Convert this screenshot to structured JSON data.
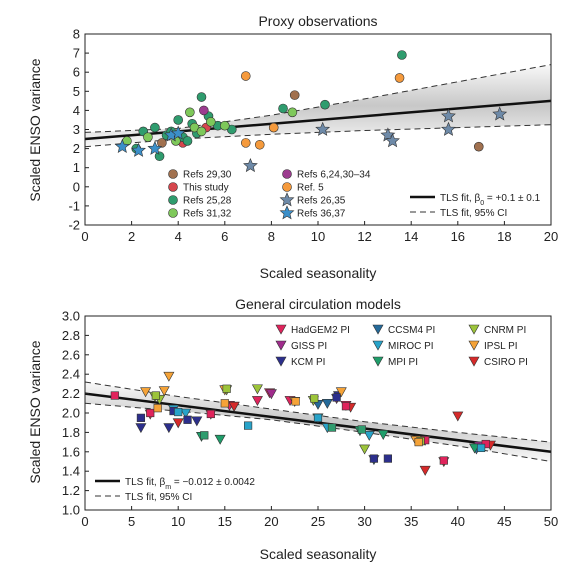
{
  "chart_data": [
    {
      "type": "scatter",
      "title": "Proxy observations",
      "xlabel": "Scaled seasonality",
      "ylabel": "Scaled ENSO variance",
      "xlim": [
        0,
        20
      ],
      "ylim": [
        -2,
        8
      ],
      "xticks": [
        "0",
        "2",
        "4",
        "6",
        "8",
        "10",
        "12",
        "14",
        "16",
        "18",
        "20"
      ],
      "yticks": [
        "-2",
        "-1",
        "0",
        "1",
        "2",
        "3",
        "4",
        "5",
        "6",
        "7",
        "8"
      ],
      "fit": {
        "x": [
          0,
          20
        ],
        "y": [
          2.5,
          4.5
        ]
      },
      "ci": {
        "x": [
          0,
          4,
          8,
          12,
          16,
          20
        ],
        "upper": [
          2.85,
          3.05,
          3.75,
          4.6,
          5.5,
          6.4
        ],
        "lower": [
          2.1,
          2.5,
          2.75,
          2.95,
          3.1,
          3.25
        ]
      },
      "series": [
        {
          "name": "Refs 29,30",
          "color": "#a1714f",
          "marker": "circle",
          "points": [
            [
              3.3,
              2.3
            ],
            [
              9.0,
              4.8
            ],
            [
              16.9,
              2.1
            ]
          ]
        },
        {
          "name": "This study",
          "color": "#d6464d",
          "marker": "circle",
          "points": [
            [
              4.2,
              2.3
            ],
            [
              5.2,
              3.1
            ]
          ]
        },
        {
          "name": "Refs 25,28",
          "color": "#2f9c6e",
          "marker": "circle",
          "points": [
            [
              2.2,
              2.0
            ],
            [
              2.5,
              2.9
            ],
            [
              3.0,
              3.1
            ],
            [
              3.2,
              1.6
            ],
            [
              3.5,
              2.7
            ],
            [
              3.7,
              2.9
            ],
            [
              4.0,
              3.5
            ],
            [
              4.2,
              2.6
            ],
            [
              4.4,
              2.4
            ],
            [
              4.6,
              3.3
            ],
            [
              4.8,
              2.8
            ],
            [
              5.0,
              4.7
            ],
            [
              5.3,
              3.7
            ],
            [
              5.7,
              3.2
            ],
            [
              6.3,
              3.0
            ],
            [
              8.5,
              4.1
            ],
            [
              10.3,
              4.3
            ],
            [
              13.6,
              6.9
            ]
          ]
        },
        {
          "name": "Refs 31,32",
          "color": "#7ec85a",
          "marker": "circle",
          "points": [
            [
              1.8,
              2.4
            ],
            [
              2.7,
              2.6
            ],
            [
              3.9,
              2.4
            ],
            [
              4.5,
              3.9
            ],
            [
              4.7,
              3.1
            ],
            [
              5.0,
              2.9
            ],
            [
              5.4,
              3.4
            ],
            [
              6.0,
              3.2
            ],
            [
              8.9,
              3.9
            ]
          ]
        },
        {
          "name": "Refs 6,24,30–34",
          "color": "#9c3c8f",
          "marker": "circle",
          "points": [
            [
              5.1,
              4.0
            ]
          ]
        },
        {
          "name": "Ref. 5",
          "color": "#f59a3c",
          "marker": "circle",
          "points": [
            [
              6.9,
              5.8
            ],
            [
              6.9,
              2.3
            ],
            [
              7.5,
              2.2
            ],
            [
              8.1,
              3.1
            ],
            [
              13.5,
              5.7
            ]
          ]
        },
        {
          "name": "Refs 26,35",
          "color": "#6e8aa8",
          "marker": "star",
          "points": [
            [
              7.1,
              1.1
            ],
            [
              10.2,
              3.0
            ],
            [
              13.0,
              2.7
            ],
            [
              13.2,
              2.4
            ],
            [
              15.6,
              3.7
            ],
            [
              15.6,
              3.0
            ],
            [
              17.8,
              3.8
            ]
          ]
        },
        {
          "name": "Refs 36,37",
          "color": "#3b8fc9",
          "marker": "star",
          "points": [
            [
              1.6,
              2.1
            ],
            [
              2.3,
              1.9
            ],
            [
              3.0,
              2.0
            ],
            [
              3.7,
              2.7
            ],
            [
              4.0,
              2.8
            ]
          ]
        }
      ],
      "legend_fit": "TLS fit, β",
      "legend_fit_sub": "0",
      "legend_fit_val": " = +0.1 ± 0.1",
      "legend_ci": "TLS fit, 95% CI"
    },
    {
      "type": "scatter",
      "title": "General circulation models",
      "xlabel": "Scaled seasonality",
      "ylabel": "Scaled ENSO variance",
      "xlim": [
        0,
        50
      ],
      "ylim": [
        1.0,
        3.0
      ],
      "xticks": [
        "0",
        "5",
        "10",
        "15",
        "20",
        "25",
        "30",
        "35",
        "40",
        "45",
        "50"
      ],
      "yticks": [
        "1.0",
        "1.2",
        "1.4",
        "1.6",
        "1.8",
        "2.0",
        "2.2",
        "2.4",
        "2.6",
        "2.8",
        "3.0"
      ],
      "fit": {
        "x": [
          0,
          50
        ],
        "y": [
          2.2,
          1.6
        ]
      },
      "ci": {
        "x": [
          0,
          10,
          20,
          30,
          40,
          50
        ],
        "upper": [
          2.32,
          2.17,
          2.04,
          1.91,
          1.8,
          1.7
        ],
        "lower": [
          2.1,
          2.02,
          1.93,
          1.8,
          1.66,
          1.5
        ]
      },
      "series": [
        {
          "name": "HadGEM2 PI",
          "color": "#e0245c",
          "marker": "tri-down",
          "points": [
            [
              15.5,
              2.08
            ],
            [
              18.5,
              2.13
            ],
            [
              19.8,
              2.21
            ],
            [
              22.0,
              2.13
            ],
            [
              28.0,
              2.08
            ],
            [
              36.0,
              1.72
            ]
          ]
        },
        {
          "name": "GISS PI",
          "color": "#a02c8c",
          "marker": "tri-down",
          "points": [
            [
              20.0,
              2.2
            ],
            [
              27.0,
              2.15
            ],
            [
              42.3,
              1.66
            ]
          ]
        },
        {
          "name": "KCM PI",
          "color": "#2c2f8c",
          "marker": "tri-down",
          "points": [
            [
              6.0,
              1.85
            ],
            [
              9.0,
              1.85
            ],
            [
              12.0,
              1.92
            ],
            [
              27.2,
              2.18
            ]
          ]
        },
        {
          "name": "CCSM4 PI",
          "color": "#256a9a",
          "marker": "tri-down",
          "points": [
            [
              25.0,
              2.09
            ],
            [
              26.0,
              2.1
            ],
            [
              31.0,
              1.52
            ],
            [
              42.0,
              1.63
            ]
          ]
        },
        {
          "name": "MIROC PI",
          "color": "#28a3c9",
          "marker": "tri-down",
          "points": [
            [
              9.5,
              2.04
            ],
            [
              10.8,
              2.0
            ],
            [
              16.0,
              2.07
            ],
            [
              26.0,
              1.85
            ],
            [
              30.5,
              1.77
            ],
            [
              36.5,
              1.72
            ]
          ]
        },
        {
          "name": "MPI PI",
          "color": "#1f9e6a",
          "marker": "tri-down",
          "points": [
            [
              12.5,
              1.76
            ],
            [
              14.5,
              1.73
            ],
            [
              25.0,
              1.95
            ],
            [
              29.5,
              1.82
            ],
            [
              32.0,
              1.78
            ],
            [
              41.8,
              1.64
            ]
          ]
        },
        {
          "name": "CNRM PI",
          "color": "#9cc43a",
          "marker": "tri-down",
          "points": [
            [
              7.5,
              2.17
            ],
            [
              8.0,
              2.14
            ],
            [
              15.2,
              2.24
            ],
            [
              18.5,
              2.25
            ],
            [
              24.5,
              2.13
            ],
            [
              30.0,
              1.63
            ],
            [
              36.0,
              1.72
            ]
          ]
        },
        {
          "name": "IPSL PI",
          "color": "#f5a338",
          "marker": "tri-down",
          "points": [
            [
              6.5,
              2.22
            ],
            [
              8.5,
              2.23
            ],
            [
              9.0,
              2.38
            ],
            [
              15.0,
              2.24
            ],
            [
              22.5,
              2.12
            ],
            [
              27.5,
              2.22
            ],
            [
              35.5,
              1.72
            ]
          ]
        },
        {
          "name": "CSIRO PI",
          "color": "#d62a2a",
          "marker": "tri-down",
          "points": [
            [
              7.0,
              1.99
            ],
            [
              10.0,
              1.9
            ],
            [
              13.5,
              1.99
            ],
            [
              16.0,
              2.07
            ],
            [
              28.5,
              2.06
            ],
            [
              36.5,
              1.41
            ],
            [
              38.5,
              1.5
            ],
            [
              40.0,
              1.97
            ],
            [
              43.5,
              1.67
            ]
          ]
        },
        {
          "name": "",
          "color": "#e0245c",
          "marker": "square",
          "points": [
            [
              3.2,
              2.18
            ],
            [
              7.0,
              2.0
            ],
            [
              13.5,
              1.99
            ],
            [
              28.0,
              2.07
            ],
            [
              36.5,
              1.72
            ],
            [
              38.5,
              1.51
            ],
            [
              43.0,
              1.68
            ]
          ]
        },
        {
          "name": "",
          "color": "#2c2f8c",
          "marker": "square",
          "points": [
            [
              6.0,
              1.95
            ],
            [
              9.5,
              2.02
            ],
            [
              11.0,
              1.93
            ],
            [
              27.0,
              2.16
            ],
            [
              31.0,
              1.53
            ],
            [
              32.5,
              1.53
            ]
          ]
        },
        {
          "name": "",
          "color": "#28a3c9",
          "marker": "square",
          "points": [
            [
              10.0,
              2.01
            ],
            [
              17.5,
              1.87
            ],
            [
              25.0,
              1.95
            ],
            [
              42.5,
              1.64
            ]
          ]
        },
        {
          "name": "",
          "color": "#2f9c6e",
          "marker": "square",
          "points": [
            [
              12.8,
              1.77
            ],
            [
              26.5,
              1.85
            ],
            [
              29.7,
              1.83
            ]
          ]
        },
        {
          "name": "",
          "color": "#9cc43a",
          "marker": "square",
          "points": [
            [
              7.6,
              2.18
            ],
            [
              15.2,
              2.25
            ],
            [
              24.6,
              2.15
            ],
            [
              36.0,
              1.71
            ]
          ]
        },
        {
          "name": "",
          "color": "#f5a338",
          "marker": "square",
          "points": [
            [
              7.8,
              2.05
            ],
            [
              15.0,
              2.1
            ],
            [
              22.6,
              2.12
            ],
            [
              35.8,
              1.7
            ]
          ]
        }
      ],
      "legend_fit": "TLS fit, β",
      "legend_fit_sub": "m",
      "legend_fit_val": " = −0.012 ± 0.0042",
      "legend_ci": "TLS fit, 95% CI"
    }
  ]
}
